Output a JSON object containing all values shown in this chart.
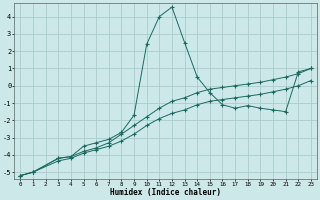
{
  "xlabel": "Humidex (Indice chaleur)",
  "bg_color": "#cce8e8",
  "grid_color": "#aacccc",
  "line_color": "#1a6a60",
  "xlim": [
    -0.5,
    23.5
  ],
  "ylim": [
    -5.4,
    4.8
  ],
  "xticks": [
    0,
    1,
    2,
    3,
    4,
    5,
    6,
    7,
    8,
    9,
    10,
    11,
    12,
    13,
    14,
    15,
    16,
    17,
    18,
    19,
    20,
    21,
    22,
    23
  ],
  "yticks": [
    -5,
    -4,
    -3,
    -2,
    -1,
    0,
    1,
    2,
    3,
    4
  ],
  "line1_x": [
    0,
    1,
    3,
    4,
    5,
    6,
    7,
    8,
    9,
    10,
    11,
    12,
    13,
    14,
    15,
    16,
    17,
    18,
    19,
    20,
    21,
    22,
    23
  ],
  "line1_y": [
    -5.2,
    -5.0,
    -4.2,
    -4.1,
    -3.5,
    -3.3,
    -3.1,
    -2.7,
    -1.7,
    2.4,
    4.0,
    4.55,
    2.5,
    0.5,
    -0.4,
    -1.1,
    -1.3,
    -1.15,
    -1.3,
    -1.4,
    -1.5,
    0.8,
    1.0
  ],
  "line2_x": [
    0,
    1,
    3,
    4,
    5,
    6,
    7,
    8,
    9,
    10,
    11,
    12,
    13,
    14,
    15,
    16,
    17,
    18,
    19,
    20,
    21,
    22,
    23
  ],
  "line2_y": [
    -5.2,
    -5.0,
    -4.2,
    -4.1,
    -3.8,
    -3.6,
    -3.3,
    -2.8,
    -2.3,
    -1.8,
    -1.3,
    -0.9,
    -0.7,
    -0.4,
    -0.2,
    -0.1,
    -0.0,
    0.1,
    0.2,
    0.35,
    0.5,
    0.7,
    1.0
  ],
  "line3_x": [
    0,
    1,
    3,
    4,
    5,
    6,
    7,
    8,
    9,
    10,
    11,
    12,
    13,
    14,
    15,
    16,
    17,
    18,
    19,
    20,
    21,
    22,
    23
  ],
  "line3_y": [
    -5.2,
    -5.0,
    -4.35,
    -4.2,
    -3.9,
    -3.7,
    -3.5,
    -3.2,
    -2.8,
    -2.3,
    -1.9,
    -1.6,
    -1.4,
    -1.1,
    -0.9,
    -0.8,
    -0.7,
    -0.6,
    -0.5,
    -0.35,
    -0.2,
    0.0,
    0.3
  ]
}
